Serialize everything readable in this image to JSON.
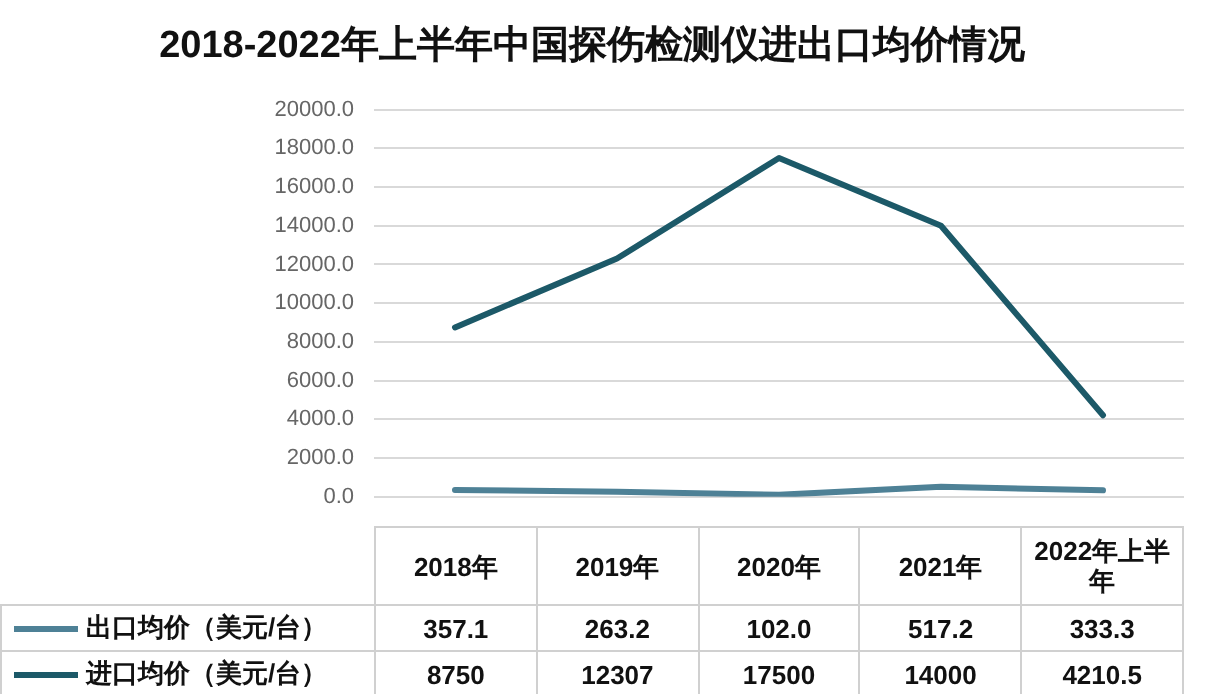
{
  "chart_data": {
    "type": "line",
    "title": "2018-2022年上半年中国探伤检测仪进出口均价情况",
    "categories": [
      "2018年",
      "2019年",
      "2020年",
      "2021年",
      "2022年上半年"
    ],
    "series": [
      {
        "name": "出口均价（美元/台）",
        "color": "#4e8196",
        "values": [
          357.1,
          263.2,
          102.0,
          517.2,
          333.3
        ],
        "value_labels": [
          "357.1",
          "263.2",
          "102.0",
          "517.2",
          "333.3"
        ]
      },
      {
        "name": "进口均价（美元/台）",
        "color": "#1c5968",
        "values": [
          8750,
          12307,
          17500,
          14000,
          4210.5
        ],
        "value_labels": [
          "8750",
          "12307",
          "17500",
          "14000",
          "4210.5"
        ]
      }
    ],
    "ylim": [
      0,
      20000
    ],
    "yticks": [
      {
        "value": 0,
        "label": "0.0"
      },
      {
        "value": 2000,
        "label": "2000.0"
      },
      {
        "value": 4000,
        "label": "4000.0"
      },
      {
        "value": 6000,
        "label": "6000.0"
      },
      {
        "value": 8000,
        "label": "8000.0"
      },
      {
        "value": 10000,
        "label": "10000.0"
      },
      {
        "value": 12000,
        "label": "12000.0"
      },
      {
        "value": 14000,
        "label": "14000.0"
      },
      {
        "value": 16000,
        "label": "16000.0"
      },
      {
        "value": 18000,
        "label": "18000.0"
      },
      {
        "value": 20000,
        "label": "20000.0"
      }
    ],
    "grid": "y",
    "legend": "bottom left",
    "marker": "none",
    "line_style": "solid"
  }
}
